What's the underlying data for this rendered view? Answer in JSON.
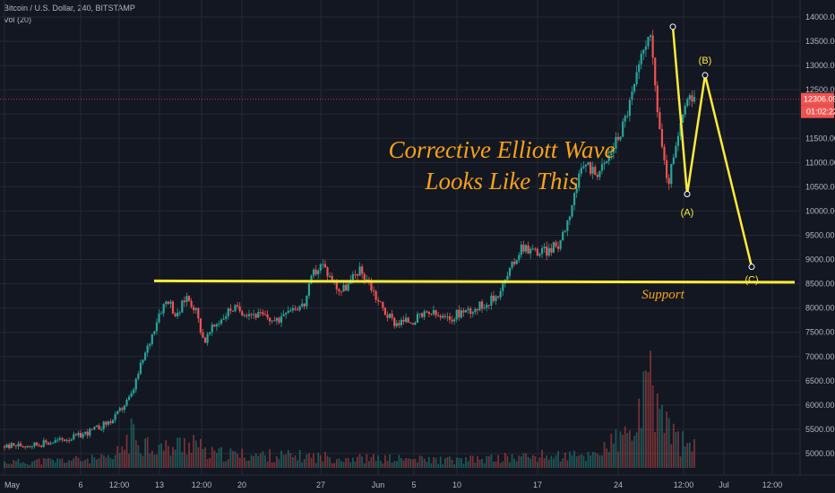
{
  "header": {
    "symbol_line": "Bitcoin / U.S. Dollar, 240, BITSTAMP",
    "volume_line": "Vol (20)"
  },
  "chart_data": {
    "type": "candlestick",
    "symbol": "Bitcoin / U.S. Dollar",
    "interval": "240",
    "exchange": "BITSTAMP",
    "indicator": "Vol (20)",
    "ylim": [
      4900,
      14200
    ],
    "y_ticks": [
      5000,
      5500,
      6000,
      6500,
      7000,
      7500,
      8000,
      8500,
      9000,
      9500,
      10000,
      10500,
      11000,
      11500,
      12000,
      12500,
      13000,
      13500,
      14000
    ],
    "y_tick_labels": [
      "5000.00",
      "5500.00",
      "6000.00",
      "6500.00",
      "7000.00",
      "7500.00",
      "8000.00",
      "8500.00",
      "9000.00",
      "9500.00",
      "10000.00",
      "10500.00",
      "11000.00",
      "11500.00",
      "12000.00",
      "12500.00",
      "13000.00",
      "13500.00",
      "14000.00"
    ],
    "x_tick_labels": [
      "May",
      "6",
      "12:00",
      "13",
      "12:00",
      "20",
      "27",
      "Jun",
      "5",
      "10",
      "17",
      "24",
      "12:00",
      "Jul",
      "12:00"
    ],
    "price_path": [
      [
        0,
        5150
      ],
      [
        4,
        5200
      ],
      [
        8,
        5350
      ],
      [
        10,
        5500
      ],
      [
        12,
        5700
      ],
      [
        14,
        6200
      ],
      [
        15,
        6800
      ],
      [
        16,
        7300
      ],
      [
        17,
        7900
      ],
      [
        18,
        8200
      ],
      [
        19,
        7800
      ],
      [
        20,
        8250
      ],
      [
        21,
        8000
      ],
      [
        22,
        7300
      ],
      [
        23,
        7600
      ],
      [
        25,
        8000
      ],
      [
        27,
        7900
      ],
      [
        29,
        7800
      ],
      [
        30,
        7700
      ],
      [
        31,
        8000
      ],
      [
        33,
        8050
      ],
      [
        34,
        8700
      ],
      [
        35,
        8900
      ],
      [
        36,
        8600
      ],
      [
        37,
        8350
      ],
      [
        38,
        8500
      ],
      [
        39,
        8800
      ],
      [
        40,
        8600
      ],
      [
        41,
        8200
      ],
      [
        42,
        7900
      ],
      [
        43,
        7700
      ],
      [
        45,
        7750
      ],
      [
        47,
        7900
      ],
      [
        48,
        7800
      ],
      [
        49,
        7750
      ],
      [
        50,
        7900
      ],
      [
        52,
        8000
      ],
      [
        54,
        8200
      ],
      [
        55,
        8500
      ],
      [
        56,
        8900
      ],
      [
        57,
        9300
      ],
      [
        58,
        9200
      ],
      [
        59,
        9150
      ],
      [
        60,
        9200
      ],
      [
        61,
        9300
      ],
      [
        62,
        9800
      ],
      [
        63,
        10500
      ],
      [
        64,
        11000
      ],
      [
        65,
        10800
      ],
      [
        66,
        10900
      ],
      [
        67,
        11300
      ],
      [
        68,
        11700
      ],
      [
        69,
        12300
      ],
      [
        70,
        13000
      ],
      [
        71,
        13800
      ],
      [
        72,
        12000
      ],
      [
        73,
        10500
      ],
      [
        74,
        11300
      ],
      [
        75,
        12200
      ],
      [
        76,
        12300
      ]
    ],
    "volume_profile": [
      [
        0,
        0.06
      ],
      [
        12,
        0.1
      ],
      [
        14,
        0.35
      ],
      [
        16,
        0.25
      ],
      [
        18,
        0.2
      ],
      [
        21,
        0.3
      ],
      [
        22,
        0.15
      ],
      [
        34,
        0.12
      ],
      [
        40,
        0.1
      ],
      [
        50,
        0.08
      ],
      [
        60,
        0.13
      ],
      [
        64,
        0.12
      ],
      [
        69,
        0.35
      ],
      [
        70,
        0.55
      ],
      [
        71,
        0.85
      ],
      [
        72,
        0.7
      ],
      [
        73,
        0.45
      ],
      [
        74,
        0.3
      ],
      [
        75,
        0.25
      ],
      [
        76,
        0.2
      ]
    ],
    "current_price": 12306.09,
    "current_price_label": "12306.09",
    "countdown": "01:02:22",
    "support_level": 8550,
    "elliott_wave": {
      "points": [
        {
          "label": "",
          "price": 13800
        },
        {
          "label": "(A)",
          "price": 10350
        },
        {
          "label": "(B)",
          "price": 12800
        },
        {
          "label": "(C)",
          "price": 8850
        }
      ]
    },
    "annotations": {
      "title_line1": "Corrective Elliott Wave",
      "title_line2": "Looks Like This",
      "support": "Support"
    }
  },
  "colors": {
    "background": "#131722",
    "grid": "#242832",
    "up": "#26a69a",
    "down": "#ef5350",
    "support_line": "#ffeb3b",
    "wave_line": "#ffeb3b",
    "annotation": "#f7a21b",
    "price_line": "#e91e63"
  }
}
